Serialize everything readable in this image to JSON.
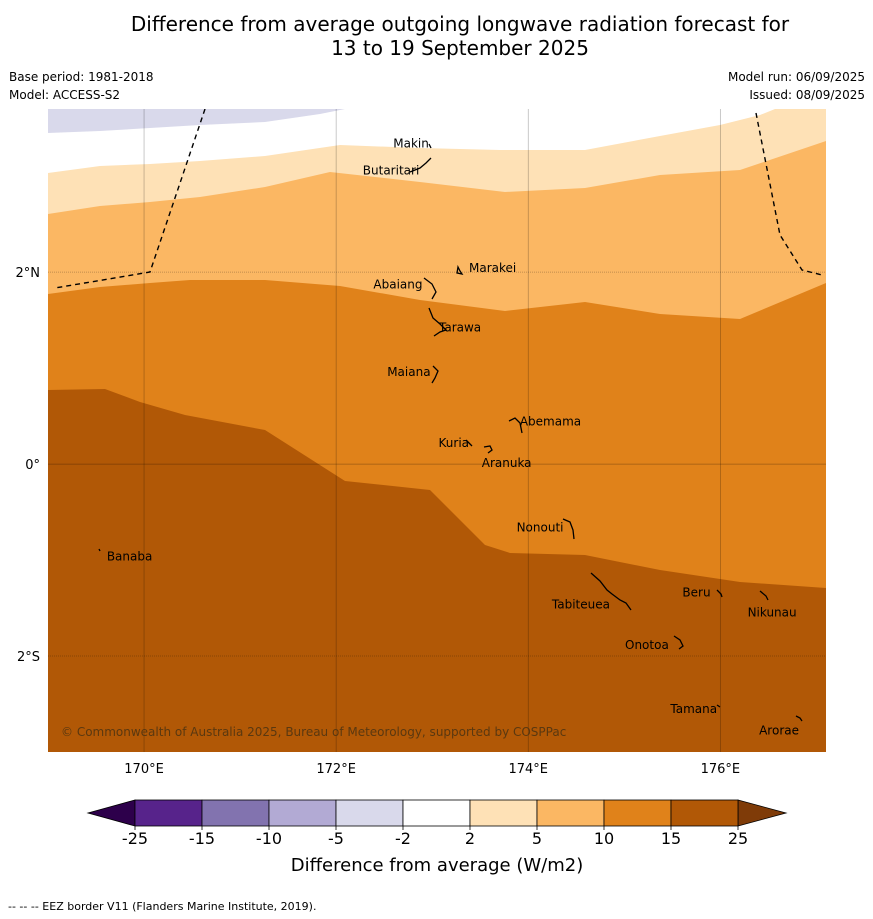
{
  "title_line1": "Difference from average outgoing longwave radiation forecast for",
  "title_line2": "13 to 19 September 2025",
  "base_period": "Base period: 1981-2018",
  "model": "Model: ACCESS-S2",
  "model_run": "Model run: 06/09/2025",
  "issued": "Issued: 08/09/2025",
  "copyright": "© Commonwealth of Australia 2025, Bureau of Meteorology, supported by COSPPac",
  "footer": "--  --  -- EEZ border V11 (Flanders Marine Institute, 2019).",
  "map": {
    "lon_range": [
      169,
      177.1
    ],
    "lat_range": [
      -3.0,
      3.7
    ],
    "lon_ticks": [
      {
        "value": 170,
        "label": "170°E"
      },
      {
        "value": 172,
        "label": "172°E"
      },
      {
        "value": 174,
        "label": "174°E"
      },
      {
        "value": 176,
        "label": "176°E"
      }
    ],
    "lat_ticks": [
      {
        "value": 2,
        "label": "2°N"
      },
      {
        "value": 0,
        "label": "0°"
      },
      {
        "value": -2,
        "label": "2°S"
      }
    ],
    "places": [
      {
        "name": "Makin",
        "lon": 172.98,
        "lat": 3.3
      },
      {
        "name": "Butaritari",
        "lon": 172.85,
        "lat": 3.1
      },
      {
        "name": "Marakei",
        "lon": 173.3,
        "lat": 2.0
      },
      {
        "name": "Abaiang",
        "lon": 172.95,
        "lat": 1.85
      },
      {
        "name": "Tarawa",
        "lon": 173.05,
        "lat": 1.4
      },
      {
        "name": "Maiana",
        "lon": 173.0,
        "lat": 0.95
      },
      {
        "name": "Abemama",
        "lon": 173.85,
        "lat": 0.4
      },
      {
        "name": "Kuria",
        "lon": 173.42,
        "lat": 0.23
      },
      {
        "name": "Aranuka",
        "lon": 173.62,
        "lat": 0.18
      },
      {
        "name": "Nonouti",
        "lon": 174.42,
        "lat": -0.65
      },
      {
        "name": "Banaba",
        "lon": 169.55,
        "lat": -0.88
      },
      {
        "name": "Tabiteuea",
        "lon": 174.85,
        "lat": -1.35
      },
      {
        "name": "Beru",
        "lon": 175.98,
        "lat": -1.33
      },
      {
        "name": "Nikunau",
        "lon": 176.45,
        "lat": -1.35
      },
      {
        "name": "Onotoa",
        "lon": 175.58,
        "lat": -1.8
      },
      {
        "name": "Tamana",
        "lon": 175.98,
        "lat": -2.5
      },
      {
        "name": "Arorae",
        "lon": 176.82,
        "lat": -2.64
      }
    ]
  },
  "colorbar": {
    "label": "Difference from average (W/m2)",
    "ticks": [
      "-25",
      "-15",
      "-10",
      "-5",
      "-2",
      "2",
      "5",
      "10",
      "15",
      "25"
    ],
    "colors": [
      "#57238b",
      "#8273af",
      "#b2aad4",
      "#d9d9eb",
      "#ffffff",
      "#fee1b6",
      "#fbb763",
      "#e0821a",
      "#b15806"
    ],
    "under_color": "#2d004b",
    "over_color": "#7f3b08"
  }
}
